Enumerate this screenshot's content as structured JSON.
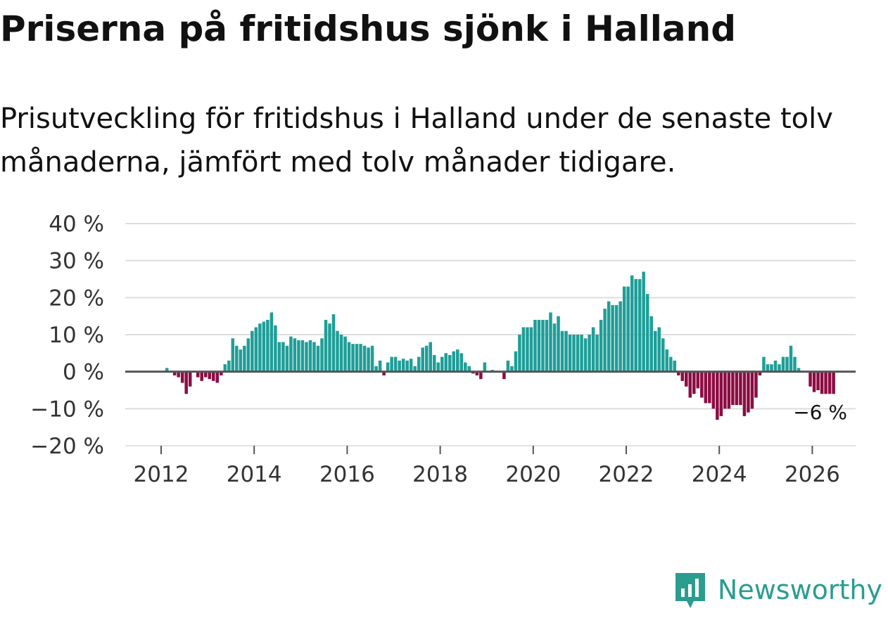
{
  "title": "Priserna på fritidshus sjönk i Halland",
  "subtitle": "Prisutveckling för fritidshus i Halland under de senaste tolv månaderna, jämfört med tolv månader tidigare.",
  "brand": "Newsworthy",
  "chart_data": {
    "type": "bar",
    "x_start": "2011-07",
    "x_frequency": "monthly",
    "ylim": [
      -20,
      40
    ],
    "y_ticks": [
      40,
      30,
      20,
      10,
      0,
      -10,
      -20
    ],
    "y_tick_labels": [
      "40 %",
      "30 %",
      "20 %",
      "10 %",
      "0 %",
      "−10 %",
      "−20 %"
    ],
    "x_ticks": [
      2012,
      2014,
      2016,
      2018,
      2020,
      2022,
      2024,
      2026
    ],
    "x_tick_labels": [
      "2012",
      "2014",
      "2016",
      "2018",
      "2020",
      "2022",
      "2024",
      "2026"
    ],
    "positive_color": "#1f9e98",
    "negative_color": "#8c0c43",
    "grid": true,
    "annotation": "−6 %",
    "values": [
      0,
      0,
      0,
      0,
      0,
      0,
      0,
      1,
      0,
      -1,
      -1.5,
      -3,
      -6,
      -4,
      0,
      -1.5,
      -2.5,
      -1.5,
      -2,
      -2.5,
      -3,
      -1,
      2,
      3,
      9,
      7,
      6,
      7,
      9,
      11,
      12,
      13,
      13.5,
      14,
      16,
      12.5,
      8,
      8,
      7,
      9.5,
      9,
      8.5,
      8.5,
      8,
      8.5,
      8,
      7,
      9,
      14,
      13,
      15.5,
      11,
      10,
      9.5,
      8,
      7.5,
      7.5,
      7.5,
      7,
      6.5,
      7,
      1.5,
      3,
      -1,
      2.5,
      4,
      4,
      3,
      3.5,
      3,
      3.5,
      1.5,
      4,
      6.5,
      7,
      8,
      4.5,
      2.5,
      4,
      5,
      4.5,
      5.5,
      6,
      5,
      2.5,
      1.5,
      -0.5,
      -1,
      -2,
      2.5,
      0,
      0.5,
      0,
      0,
      -2,
      3,
      1.5,
      5.5,
      10,
      12,
      12,
      12,
      14,
      14,
      14,
      14,
      16,
      13,
      15,
      11,
      11,
      10,
      10,
      10,
      10,
      9,
      10,
      12,
      10,
      14,
      17,
      19,
      18,
      18,
      19,
      23,
      23,
      26,
      25,
      25,
      27,
      21,
      15,
      11,
      12,
      9,
      6,
      4,
      3,
      -1,
      -2.5,
      -4,
      -7,
      -6,
      -4.5,
      -7,
      -8.5,
      -8.5,
      -10,
      -13,
      -12,
      -10,
      -10,
      -9,
      -9,
      -9,
      -12,
      -11,
      -10,
      -7,
      -1,
      4,
      2,
      2,
      3,
      2,
      4,
      4,
      7,
      4,
      1,
      0,
      0,
      -4,
      -5.5,
      -5,
      -6,
      -6,
      -6,
      -6
    ]
  }
}
